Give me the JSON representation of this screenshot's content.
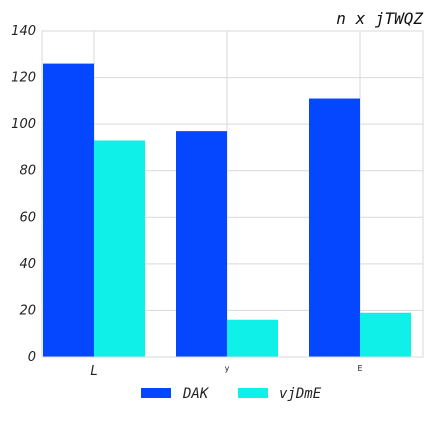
{
  "chart_data": {
    "type": "bar",
    "title": "n x jTWQZ",
    "xlabel": "",
    "ylabel": "",
    "categories": [
      "L",
      "y",
      "E"
    ],
    "series": [
      {
        "name": "DAK",
        "values": [
          126,
          97,
          111
        ],
        "color": "#0547ff"
      },
      {
        "name": "vjDmE",
        "values": [
          93,
          16,
          19
        ],
        "color": "#0ff0e8"
      }
    ],
    "ylim": [
      0,
      140
    ],
    "yticks": [
      0,
      20,
      40,
      60,
      80,
      100,
      120,
      140
    ],
    "grid": true,
    "legend": "bottom-center"
  }
}
